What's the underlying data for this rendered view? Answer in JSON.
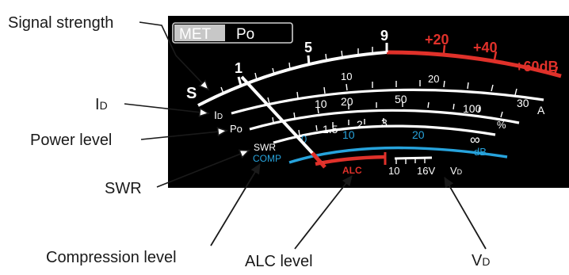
{
  "callouts": {
    "signal_strength": "Signal strength",
    "id_main": "I",
    "id_sub": "D",
    "power_level": "Power level",
    "swr": "SWR",
    "compression_level": "Compression level",
    "alc_level": "ALC level",
    "vd_main": "V",
    "vd_sub": "D"
  },
  "meter_buttons": {
    "met": "MET",
    "po": "Po"
  },
  "scale_s": {
    "label": "S",
    "ticks": [
      "1",
      "5",
      "9"
    ],
    "db_ticks": [
      "+20",
      "+40",
      "+60dB"
    ]
  },
  "scale_id": {
    "label_main": "I",
    "label_sub": "D",
    "ticks": [
      "10",
      "20"
    ],
    "unit": "A"
  },
  "scale_po": {
    "label": "Po",
    "ticks": [
      "10",
      "20",
      "50",
      "100"
    ],
    "unit": "%"
  },
  "scale_swr": {
    "label": "SWR",
    "ticks": [
      "1.5",
      "2",
      "3",
      "∞"
    ]
  },
  "scale_comp": {
    "label": "COMP",
    "ticks": [
      "0",
      "10",
      "20"
    ],
    "unit": "dB"
  },
  "scale_alc": {
    "label": "ALC"
  },
  "scale_vd": {
    "ticks": [
      "10",
      "16V"
    ],
    "label_main": "V",
    "label_sub": "D"
  },
  "colors": {
    "panel": "#000000",
    "scale_white": "#ffffff",
    "scale_red": "#e0312a",
    "scale_blue": "#27a3dc"
  }
}
